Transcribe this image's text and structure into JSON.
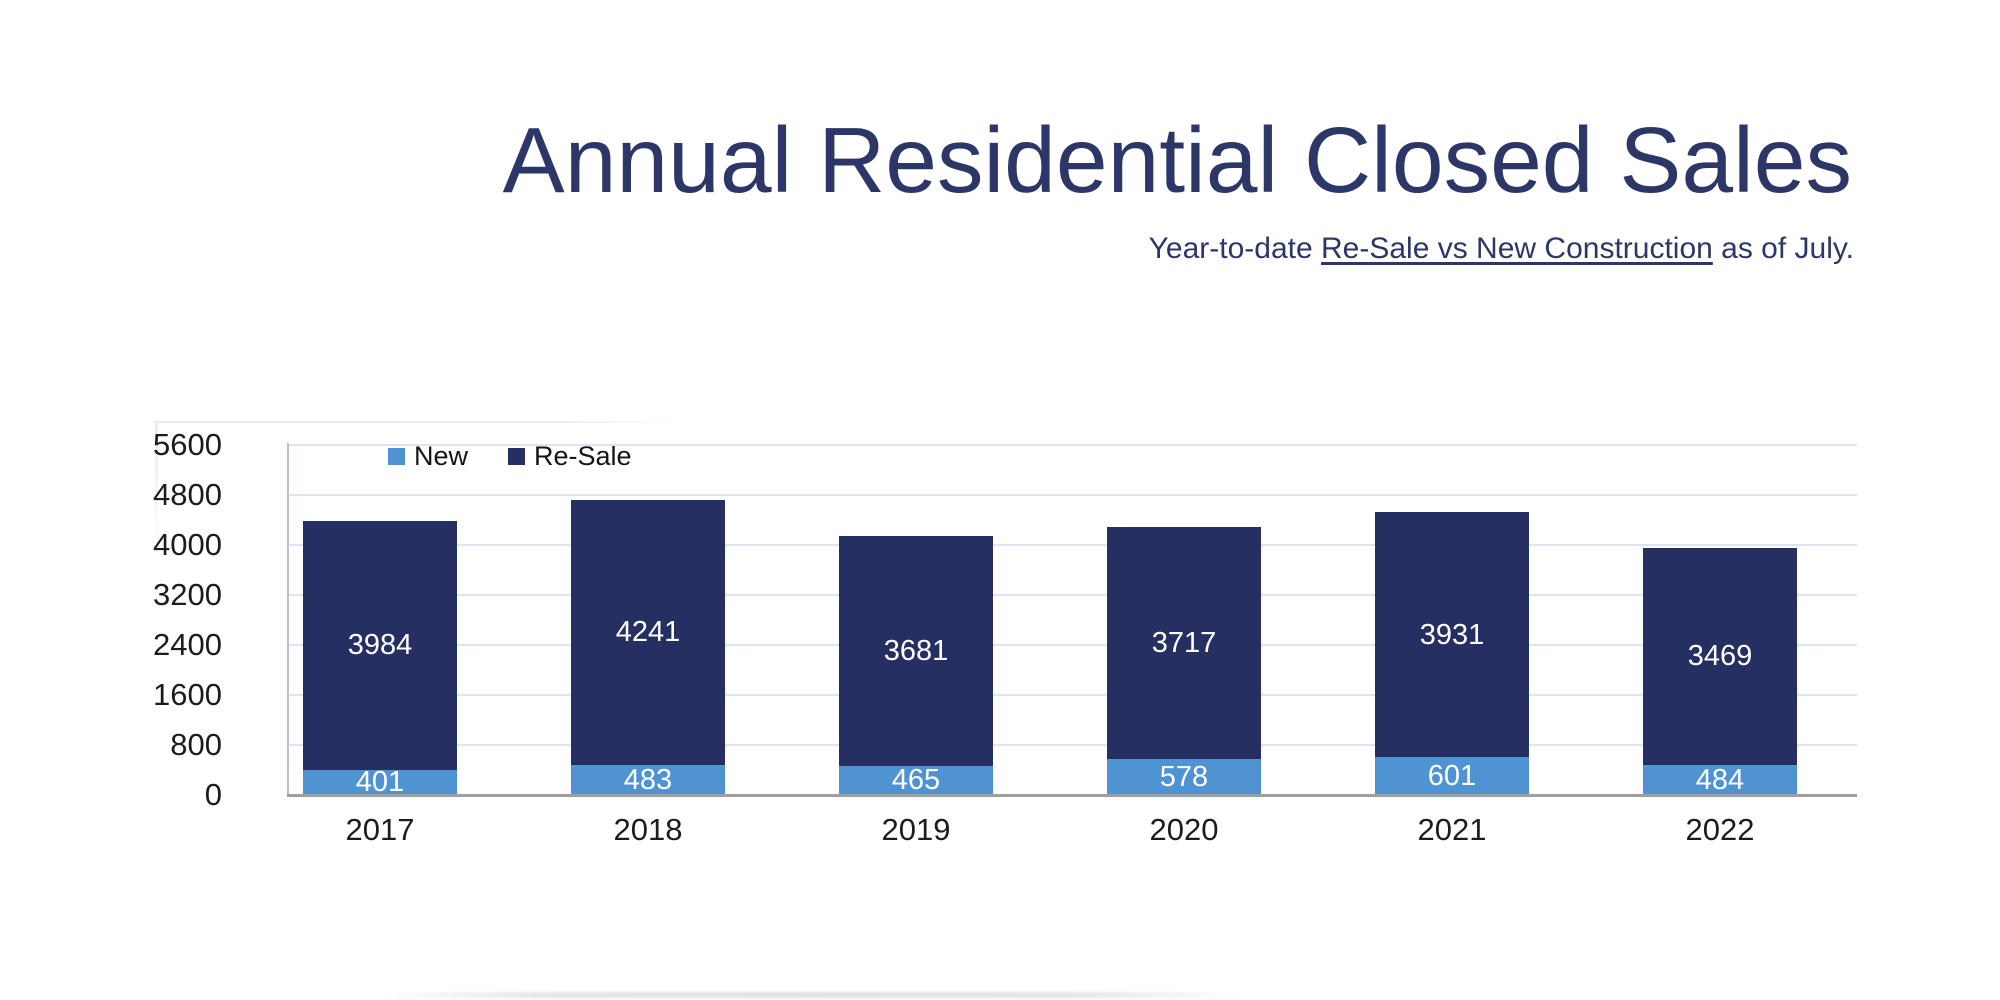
{
  "page": {
    "title": "Annual Residential Closed Sales",
    "subtitle_prefix": "Year-to-date ",
    "subtitle_underlined": "Re-Sale vs New Construction",
    "subtitle_suffix": " as of July."
  },
  "colors": {
    "title_navy": "#2c3768",
    "bar_navy": "#262f61",
    "bar_blue": "#4f93d3",
    "gridline": "#dde4ef",
    "y_axis_line": "#b9bfcb",
    "baseline": "#9e9e9e",
    "tick_text": "#1c1c1c",
    "value_label_text": "#ffffff"
  },
  "chart_data": {
    "type": "bar",
    "stacked": true,
    "title": "Annual Residential Closed Sales",
    "subtitle": "Year-to-date Re-Sale vs New Construction as of July.",
    "categories": [
      "2017",
      "2018",
      "2019",
      "2020",
      "2021",
      "2022"
    ],
    "series": [
      {
        "name": "New",
        "color": "#4f93d3",
        "values": [
          401,
          483,
          465,
          578,
          601,
          484
        ]
      },
      {
        "name": "Re-Sale",
        "color": "#262f61",
        "values": [
          3984,
          4241,
          3681,
          3717,
          3931,
          3469
        ]
      }
    ],
    "totals": [
      4385,
      4724,
      4146,
      4295,
      4532,
      3953
    ],
    "ylim": [
      0,
      5600
    ],
    "ytick_step": 800,
    "yticks": [
      0,
      800,
      1600,
      2400,
      3200,
      4000,
      4800,
      5600
    ],
    "xlabel": "",
    "ylabel": "",
    "grid": "horizontal",
    "legend_position": "top-inside-left",
    "value_labels": "centered-white-in-segment"
  }
}
